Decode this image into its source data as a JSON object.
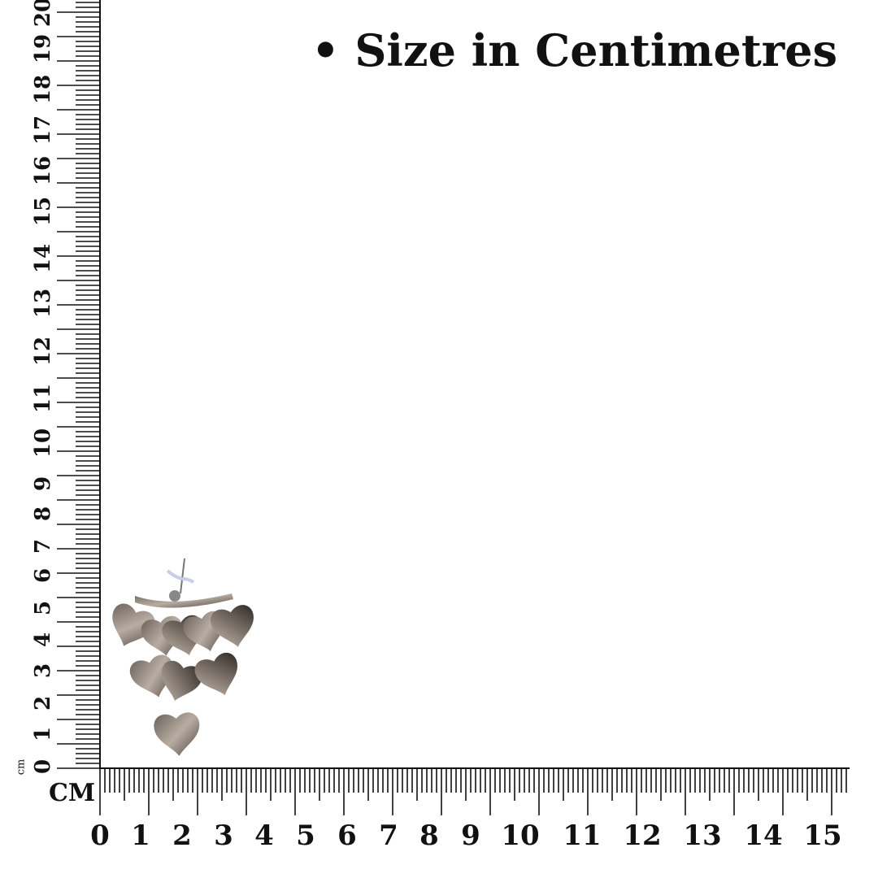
{
  "title": "• Size in Centimetres",
  "unit_small": "cm",
  "unit_big": "CM",
  "vertical_ruler": {
    "labels": [
      "0",
      "1",
      "2",
      "3",
      "4",
      "5",
      "6",
      "7",
      "8",
      "9",
      "10",
      "11",
      "12",
      "13",
      "14",
      "15",
      "16",
      "17",
      "18",
      "19",
      "20"
    ]
  },
  "horizontal_ruler": {
    "labels": [
      "0",
      "1",
      "2",
      "3",
      "4",
      "5",
      "6",
      "7",
      "8",
      "9",
      "10",
      "11",
      "12",
      "13",
      "14",
      "15"
    ]
  },
  "product": {
    "name": "heart-cluster-earring",
    "color": "#8a7f76"
  }
}
